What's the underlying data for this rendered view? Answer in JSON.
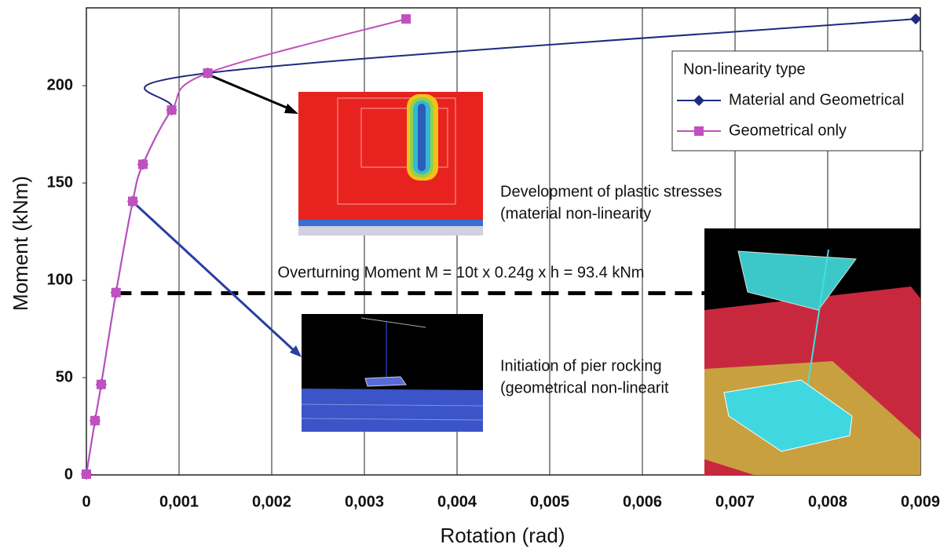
{
  "chart_data": {
    "type": "line",
    "x_label": "Rotation (rad)",
    "y_label": "Moment (kNm)",
    "xlim": [
      0,
      0.009
    ],
    "ylim": [
      0,
      240
    ],
    "xticks": [
      0,
      {
        "value": 0.001,
        "label": "0,001"
      },
      {
        "value": 0.002,
        "label": "0,002"
      },
      {
        "value": 0.003,
        "label": "0,003"
      },
      {
        "value": 0.004,
        "label": "0,004"
      },
      {
        "value": 0.005,
        "label": "0,005"
      },
      {
        "value": 0.006,
        "label": "0,006"
      },
      {
        "value": 0.007,
        "label": "0,007"
      },
      {
        "value": 0.008,
        "label": "0,008"
      },
      {
        "value": 0.009,
        "label": "0,009"
      }
    ],
    "yticks": [
      0,
      50,
      100,
      150,
      200
    ],
    "grid": "x",
    "legend_title": "Non-linearity type",
    "legend_position": "upper right",
    "series": [
      {
        "name": "Material and Geometrical",
        "color": "#1f2a80",
        "marker": "diamond",
        "x": [
          0,
          9.3e-05,
          0.00016,
          0.00032,
          0.0005,
          0.00061,
          0.00092,
          0.00131,
          0.00895
        ],
        "values": [
          0.4,
          27.9,
          46.5,
          93.7,
          140.6,
          159.6,
          187.5,
          206.5,
          234.3
        ]
      },
      {
        "name": "Geometrical only",
        "color": "#c050c0",
        "marker": "square",
        "x": [
          0,
          9.3e-05,
          0.00016,
          0.00032,
          0.0005,
          0.00061,
          0.00092,
          0.00131,
          0.00345
        ],
        "values": [
          0.4,
          27.9,
          46.5,
          93.7,
          140.6,
          159.6,
          187.5,
          206.5,
          234.3
        ]
      }
    ],
    "reference_line": {
      "label": "Overturning Moment M = 10t x 0.24g x h = 93.4 kNm",
      "value": 93.4,
      "x_from": 0.0003,
      "x_to": 0.0067
    },
    "annotations": [
      "Development of plastic stresses",
      "(material non-linearity",
      "Initiation of pier rocking",
      "(geometrical non-linearit"
    ]
  }
}
